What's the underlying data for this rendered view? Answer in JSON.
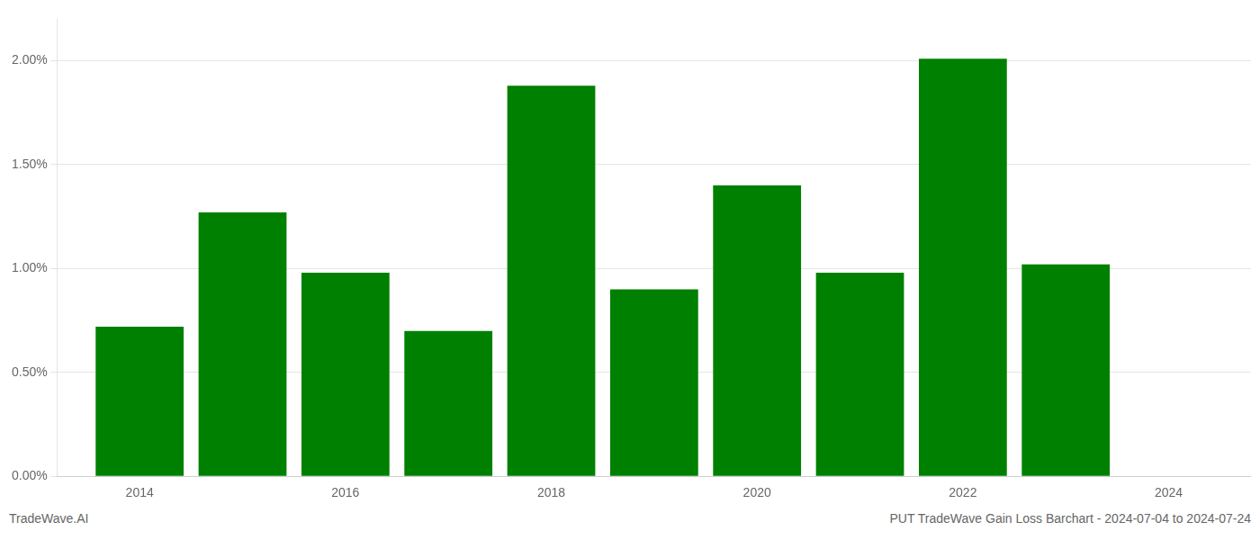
{
  "chart_data": {
    "type": "bar",
    "x": [
      2014,
      2015,
      2016,
      2017,
      2018,
      2019,
      2020,
      2021,
      2022,
      2023
    ],
    "values": [
      0.0072,
      0.0127,
      0.0098,
      0.007,
      0.0188,
      0.009,
      0.014,
      0.0098,
      0.0201,
      0.0102
    ],
    "color": "#008000",
    "xlim": [
      2013.2,
      2024.8
    ],
    "xticks": [
      2014,
      2016,
      2018,
      2020,
      2022,
      2024
    ],
    "ylim": [
      0,
      0.022
    ],
    "yticks": [
      {
        "value": 0.0,
        "label": "0.00%"
      },
      {
        "value": 0.005,
        "label": "0.50%"
      },
      {
        "value": 0.01,
        "label": "1.00%"
      },
      {
        "value": 0.015,
        "label": "1.50%"
      },
      {
        "value": 0.02,
        "label": "2.00%"
      }
    ],
    "grid": true,
    "annotations": [
      "TradeWave.AI",
      "PUT TradeWave Gain Loss Barchart - 2024-07-04 to 2024-07-24"
    ]
  }
}
